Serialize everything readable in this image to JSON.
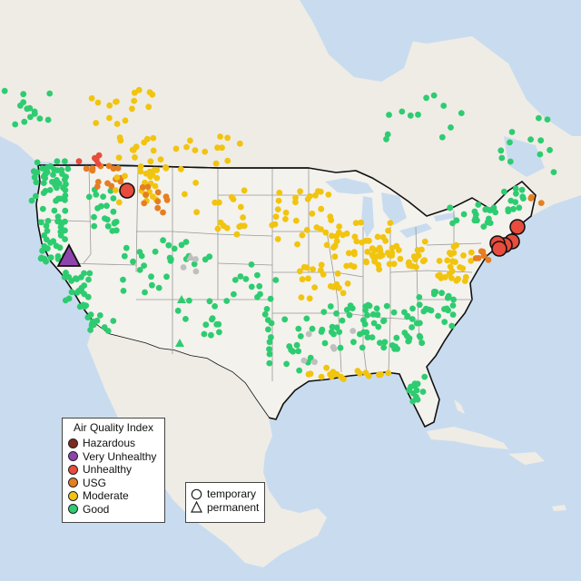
{
  "legend": {
    "title": "Air Quality Index",
    "categories": [
      {
        "label": "Hazardous",
        "color": "#7e2b1f"
      },
      {
        "label": "Very Unhealthy",
        "color": "#8e44ad"
      },
      {
        "label": "Unhealthy",
        "color": "#e74c3c"
      },
      {
        "label": "USG",
        "color": "#e67e22"
      },
      {
        "label": "Moderate",
        "color": "#f1c40f"
      },
      {
        "label": "Good",
        "color": "#2ecc71"
      }
    ]
  },
  "shape_legend": {
    "temporary": "temporary",
    "permanent": "permanent"
  },
  "colors": {
    "water": "#c9dcef",
    "land": "#f1efe9",
    "state_border": "#999999",
    "no_data_marker": "#bfbfbf"
  }
}
